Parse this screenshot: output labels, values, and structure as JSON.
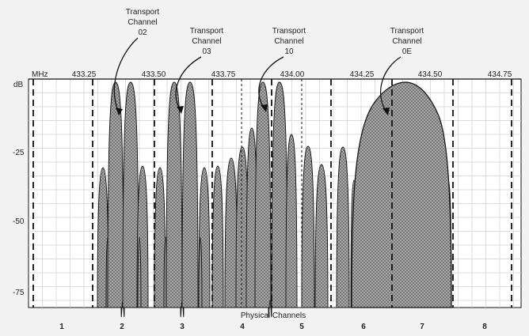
{
  "spectrum": {
    "x_unit": "MHz",
    "y_unit": "dB",
    "freq_ticks": [
      "433.25",
      "433.50",
      "433.75",
      "434.00",
      "434.25",
      "434.50",
      "434.75"
    ],
    "db_ticks": [
      "-25",
      "-50",
      "-75"
    ],
    "x_axis_title": "Physical Channels",
    "physical_channels": [
      "1",
      "2",
      "3",
      "4",
      "5",
      "6",
      "7",
      "8"
    ]
  },
  "callouts": [
    {
      "line1": "Transport",
      "line2": "Channel",
      "line3": "02"
    },
    {
      "line1": "Transport",
      "line2": "Channel",
      "line3": "03"
    },
    {
      "line1": "Transport",
      "line2": "Channel",
      "line3": "10"
    },
    {
      "line1": "Transport",
      "line2": "Channel",
      "line3": "0E"
    }
  ],
  "colors": {
    "background": "#f2f2f2",
    "plot_area": "#ffffff",
    "grid": "#c8c8c8",
    "spectrum_fill": "#9a9a9a",
    "outline": "#111111"
  }
}
